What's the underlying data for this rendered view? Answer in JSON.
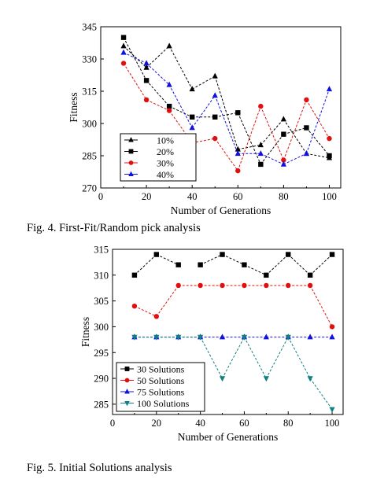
{
  "figures": [
    {
      "caption": "Fig. 4. First-Fit/Random pick analysis"
    },
    {
      "caption": "Fig. 5. Initial Solutions analysis"
    }
  ],
  "chart_data": [
    {
      "type": "line",
      "title": "",
      "xlabel": "Number of Generations",
      "ylabel": "Fitness",
      "xlim": [
        0,
        105
      ],
      "ylim": [
        270,
        345
      ],
      "xticks": [
        0,
        20,
        40,
        60,
        80,
        100
      ],
      "yticks": [
        270,
        285,
        300,
        315,
        330,
        345
      ],
      "grid": false,
      "legend": "bottom-left",
      "x": [
        10,
        20,
        30,
        40,
        50,
        60,
        70,
        80,
        90,
        100
      ],
      "series": [
        {
          "name": "10%",
          "marker": "triangle-up",
          "color": "#000000",
          "values": [
            336,
            326,
            336,
            316,
            322,
            288,
            290,
            302,
            286,
            284
          ]
        },
        {
          "name": "20%",
          "marker": "square",
          "color": "#000000",
          "values": [
            340,
            320,
            308,
            303,
            303,
            305,
            281,
            295,
            298,
            285
          ]
        },
        {
          "name": "30%",
          "marker": "circle",
          "color": "#e01010",
          "values": [
            328,
            311,
            306,
            291,
            293,
            278,
            308,
            283,
            311,
            293
          ]
        },
        {
          "name": "40%",
          "marker": "triangle-up",
          "color": "#1010e0",
          "values": [
            333,
            328,
            318,
            298,
            313,
            286,
            286,
            281,
            286,
            316
          ]
        }
      ]
    },
    {
      "type": "line",
      "title": "",
      "xlabel": "Number of Generations",
      "ylabel": "Fitness",
      "xlim": [
        0,
        105
      ],
      "ylim": [
        283,
        315
      ],
      "xticks": [
        0,
        20,
        40,
        60,
        80,
        100
      ],
      "yticks": [
        285,
        290,
        295,
        300,
        305,
        310,
        315
      ],
      "grid": false,
      "legend": "bottom-left",
      "x": [
        10,
        20,
        30,
        40,
        50,
        60,
        70,
        80,
        90,
        100
      ],
      "series": [
        {
          "name": "30 Solutions",
          "marker": "square",
          "color": "#000000",
          "values": [
            310,
            314,
            312,
            312,
            314,
            312,
            310,
            314,
            310,
            314
          ],
          "gaps": [
            3
          ]
        },
        {
          "name": "50 Solutions",
          "marker": "circle",
          "color": "#e01010",
          "values": [
            304,
            302,
            308,
            308,
            308,
            308,
            308,
            308,
            308,
            300
          ]
        },
        {
          "name": "75 Solutions",
          "marker": "triangle-up",
          "color": "#1010e0",
          "values": [
            298,
            298,
            298,
            298,
            298,
            298,
            298,
            298,
            298,
            298
          ]
        },
        {
          "name": "100 Solutions",
          "marker": "triangle-down",
          "color": "#108080",
          "values": [
            298,
            298,
            298,
            298,
            290,
            298,
            290,
            298,
            290,
            284
          ]
        }
      ]
    }
  ]
}
